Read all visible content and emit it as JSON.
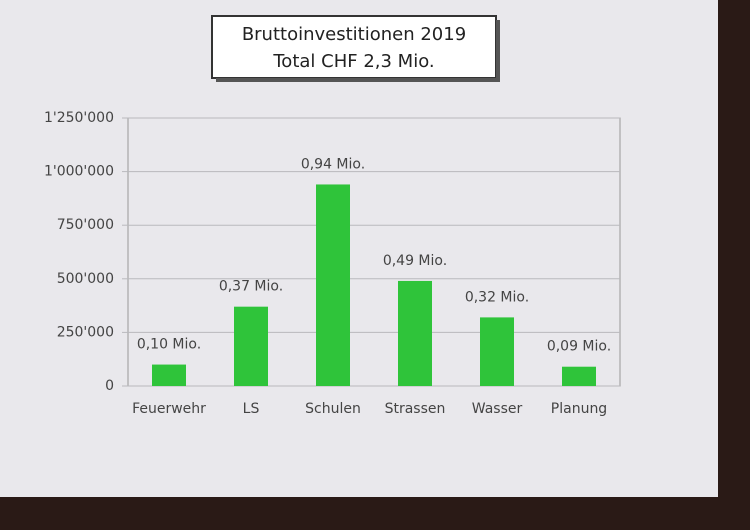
{
  "chart_data": {
    "type": "bar",
    "title": "Bruttoinvestitionen 2019",
    "subtitle": "Total CHF 2,3 Mio.",
    "categories": [
      "Feuerwehr",
      "LS",
      "Schulen",
      "Strassen",
      "Wasser",
      "Planung"
    ],
    "values": [
      100000,
      370000,
      940000,
      490000,
      320000,
      90000
    ],
    "value_labels": [
      "0,10 Mio.",
      "0,37 Mio.",
      "0,94 Mio.",
      "0,49 Mio.",
      "0,32 Mio.",
      "0,09 Mio."
    ],
    "color": "#2fc43a",
    "ylim": [
      0,
      1250000
    ],
    "yticks": [
      0,
      {
        "value": 250000,
        "label": "250'000"
      },
      {
        "value": 500000,
        "label": "500'000"
      },
      {
        "value": 750000,
        "label": "750'000"
      },
      {
        "value": 1000000,
        "label": "1'000'000"
      },
      {
        "value": 1250000,
        "label": "1'250'000"
      }
    ],
    "grid": true
  }
}
